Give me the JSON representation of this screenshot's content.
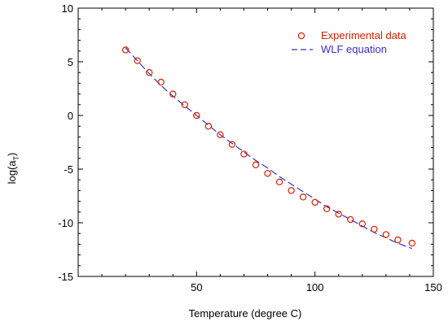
{
  "chart_data": {
    "type": "scatter",
    "xlabel": "Temperature (degree C)",
    "ylabel": {
      "main": "log(a",
      "sub": "T",
      "close": ")"
    },
    "xlim": [
      0,
      150
    ],
    "ylim": [
      -15,
      10
    ],
    "xticks": [
      50,
      100,
      150
    ],
    "yticks": [
      -15,
      -10,
      -5,
      0,
      5,
      10
    ],
    "grid": false,
    "legend_position": "top-right",
    "series": [
      {
        "name": "Experimental data",
        "style": "markers",
        "color": "#cc2200",
        "x": [
          20,
          25,
          30,
          35,
          40,
          45,
          50,
          55,
          60,
          65,
          70,
          75,
          80,
          85,
          90,
          95,
          100,
          105,
          110,
          115,
          120,
          125,
          130,
          135,
          141
        ],
        "y": [
          6.1,
          5.1,
          4.0,
          3.1,
          2.0,
          1.0,
          0.0,
          -1.0,
          -1.8,
          -2.7,
          -3.6,
          -4.6,
          -5.4,
          -6.2,
          -7.0,
          -7.6,
          -8.1,
          -8.7,
          -9.2,
          -9.7,
          -10.1,
          -10.6,
          -11.1,
          -11.6,
          -11.9
        ]
      },
      {
        "name": "WLF equation",
        "style": "dashed-line",
        "color": "#3b2fc9",
        "x": [
          20,
          25,
          30,
          35,
          40,
          45,
          50,
          55,
          60,
          65,
          70,
          75,
          80,
          85,
          90,
          95,
          100,
          105,
          110,
          115,
          120,
          125,
          130,
          135,
          141
        ],
        "y": [
          6.3,
          5.1,
          3.9,
          2.8,
          1.8,
          0.9,
          0.0,
          -0.9,
          -1.8,
          -2.6,
          -3.4,
          -4.2,
          -4.9,
          -5.7,
          -6.4,
          -7.1,
          -7.8,
          -8.5,
          -9.1,
          -9.7,
          -10.3,
          -10.9,
          -11.4,
          -11.9,
          -12.4
        ]
      }
    ]
  }
}
